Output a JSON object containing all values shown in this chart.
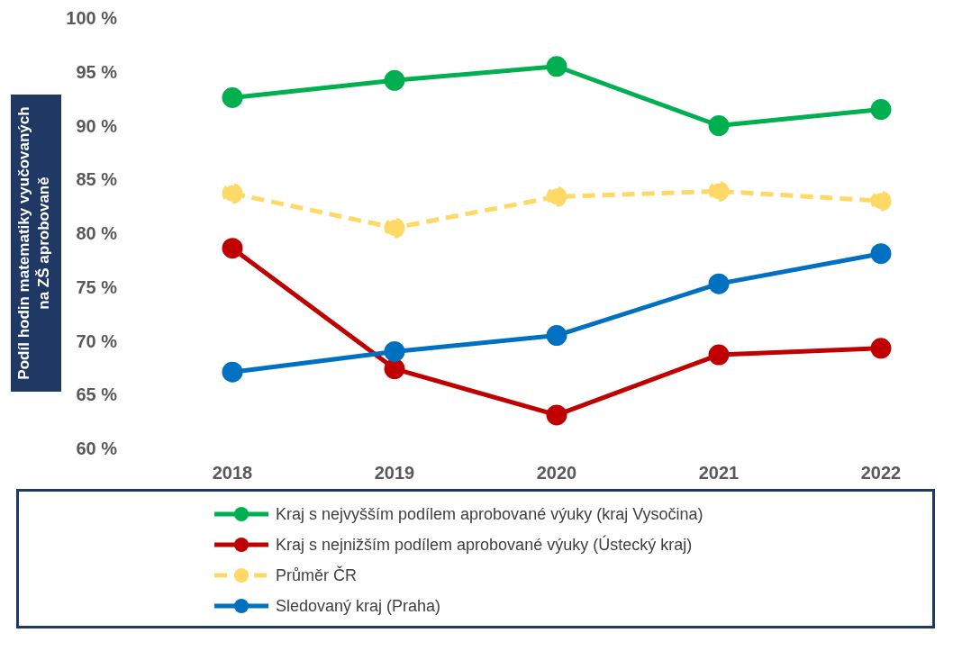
{
  "chart_data": {
    "type": "line",
    "ylabel": "Podíl hodin matematiky vyučovaných na ZŠ aprobovaně",
    "categories": [
      "2018",
      "2019",
      "2020",
      "2021",
      "2022"
    ],
    "series": [
      {
        "name": "Kraj s nejvyšším podílem aprobované výuky (kraj Vysočina)",
        "color": "#00b050",
        "values": [
          92.6,
          94.2,
          95.5,
          90.0,
          91.5
        ]
      },
      {
        "name": "Kraj s nejnižším podílem aprobované výuky (Ústecký kraj)",
        "color": "#c00000",
        "values": [
          78.6,
          67.4,
          63.1,
          68.7,
          69.3
        ]
      },
      {
        "name": "Průměr ČR",
        "color": "#ffd966",
        "line_style": "dashed",
        "values": [
          83.7,
          80.5,
          83.4,
          83.9,
          83.0
        ]
      },
      {
        "name": "Sledovaný kraj (Praha)",
        "color": "#0070c0",
        "values": [
          67.1,
          69.0,
          70.5,
          75.3,
          78.1
        ]
      }
    ],
    "ylim": [
      60,
      100
    ],
    "yticks": [
      {
        "value": 60,
        "label": "60 %"
      },
      {
        "value": 65,
        "label": "65 %"
      },
      {
        "value": 70,
        "label": "70 %"
      },
      {
        "value": 75,
        "label": "75 %"
      },
      {
        "value": 80,
        "label": "80 %"
      },
      {
        "value": 85,
        "label": "85 %"
      },
      {
        "value": 90,
        "label": "90 %"
      },
      {
        "value": 95,
        "label": "95 %"
      },
      {
        "value": 100,
        "label": "100 %"
      }
    ],
    "grid": false,
    "legend": "bottom",
    "marker": "circle",
    "line_style": "solid"
  }
}
